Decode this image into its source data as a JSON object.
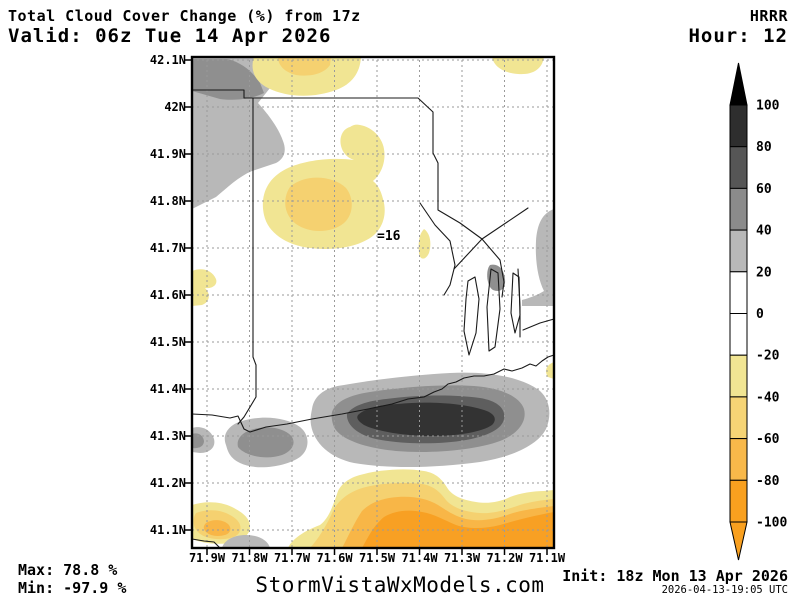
{
  "header": {
    "title": "Total Cloud Cover Change (%) from 17z",
    "model": "HRRR",
    "valid": "Valid: 06z Tue 14 Apr 2026",
    "hour": "Hour: 12"
  },
  "map": {
    "y_tick_labels": [
      "42.1N",
      "42N",
      "41.9N",
      "41.8N",
      "41.7N",
      "41.6N",
      "41.5N",
      "41.4N",
      "41.3N",
      "41.2N",
      "41.1N"
    ],
    "x_tick_labels": [
      "71.9W",
      "71.8W",
      "71.7W",
      "71.6W",
      "71.5W",
      "71.4W",
      "71.3W",
      "71.2W",
      "71.1W"
    ],
    "station_label": "=16"
  },
  "colorbar": {
    "tick_labels": [
      "100",
      "80",
      "60",
      "40",
      "20",
      "0",
      "-20",
      "-40",
      "-60",
      "-80",
      "-100"
    ],
    "segment_colors": [
      "#2e2e2e",
      "#565656",
      "#8b8b8b",
      "#b8b8b8",
      "#ffffff",
      "#ffffff",
      "#f1e593",
      "#f6d475",
      "#f8b84a",
      "#f9a01f"
    ],
    "arrow_top_color": "#000000",
    "arrow_bottom_color": "#f9a01f"
  },
  "footer": {
    "max_label": "Max: 78.8 %",
    "min_label": "Min: -97.9 %",
    "site": "StormVistaWxModels.com",
    "init": "Init: 18z Mon 13 Apr 2026",
    "timestamp": "2026-04-13-19:05 UTC"
  },
  "map_palette": {
    "gray_light": "#b8b8b8",
    "gray_med": "#8f8f8f",
    "gray_dark": "#5e5e5e",
    "gray_darkest": "#333333",
    "yellow_pale": "#f1e593",
    "yellow_mid": "#f5d170",
    "orange": "#f8b647",
    "orange_deep": "#f8a023",
    "gridline": "#9a9a9a",
    "coastline": "#1a1a1a"
  },
  "chart_data": {
    "type": "heatmap",
    "title": "Total Cloud Cover Change (%) from 17z",
    "scale_levels": [
      -100,
      -80,
      -60,
      -40,
      -20,
      0,
      20,
      40,
      60,
      80,
      100
    ],
    "max_value": 78.8,
    "min_value": -97.9,
    "lat_ticks": [
      42.1,
      42.0,
      41.9,
      41.8,
      41.7,
      41.6,
      41.5,
      41.4,
      41.3,
      41.2,
      41.1
    ],
    "lon_ticks": [
      -71.9,
      -71.8,
      -71.7,
      -71.6,
      -71.5,
      -71.4,
      -71.3,
      -71.2,
      -71.1
    ]
  }
}
